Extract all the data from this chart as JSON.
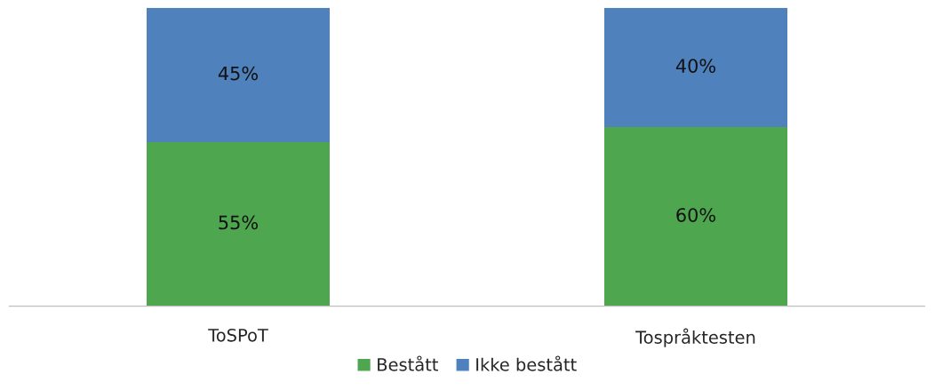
{
  "chart_data": {
    "type": "bar",
    "stacked": true,
    "categories": [
      "ToSPoT",
      "Tospråktesten"
    ],
    "series": [
      {
        "name": "Bestått",
        "color": "#4ea64e",
        "values": [
          55,
          60
        ],
        "value_labels": [
          "55%",
          "60%"
        ]
      },
      {
        "name": "Ikke bestått",
        "color": "#4f81bd",
        "values": [
          45,
          40
        ],
        "value_labels": [
          "45%",
          "40%"
        ]
      }
    ],
    "legend": "bottom"
  }
}
